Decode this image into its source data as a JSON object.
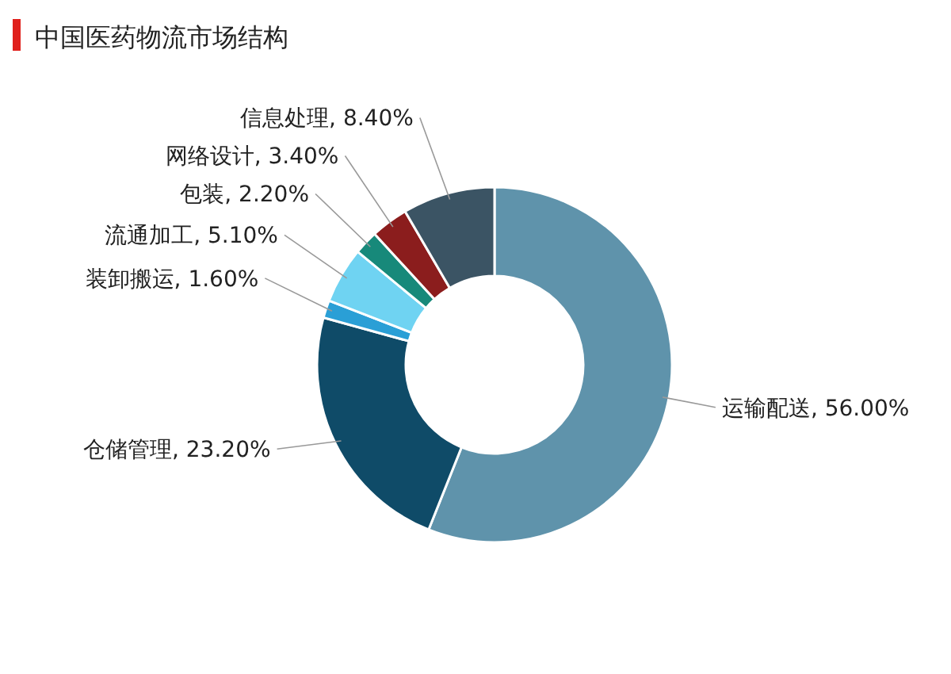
{
  "chart_data": {
    "type": "donut",
    "title": "中国医药物流市场结构",
    "categories": [
      "运输配送",
      "仓储管理",
      "装卸搬运",
      "流通加工",
      "包装",
      "网络设计",
      "信息处理"
    ],
    "values": [
      56.0,
      23.2,
      1.6,
      5.1,
      2.2,
      3.4,
      8.4
    ],
    "value_labels": [
      "56.00%",
      "23.20%",
      "1.60%",
      "5.10%",
      "2.20%",
      "3.40%",
      "8.40%"
    ],
    "colors": [
      "#5f93ab",
      "#0f4b68",
      "#2a9fd6",
      "#6fd3f2",
      "#17897a",
      "#8b1d1d",
      "#3b5464"
    ]
  }
}
